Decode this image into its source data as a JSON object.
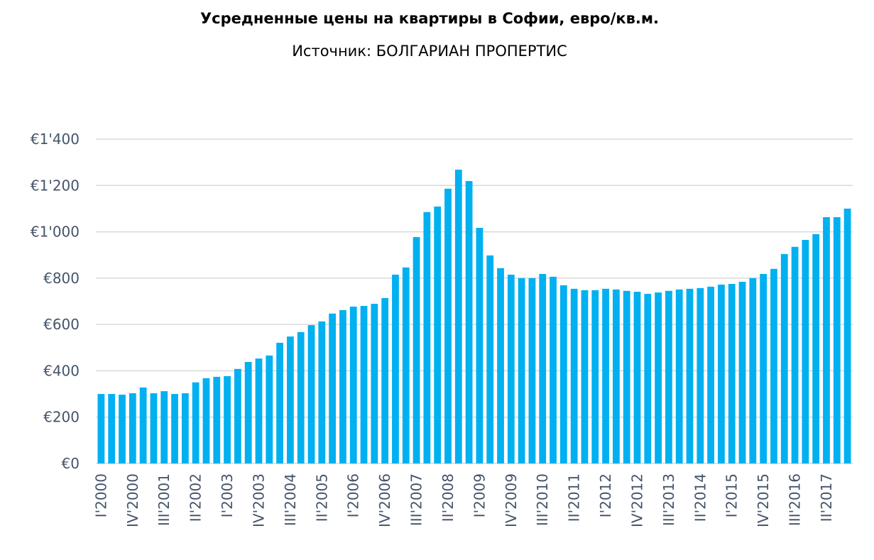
{
  "chart_data": {
    "type": "bar",
    "title": "Усредненные цены на квартиры в Софии, евро/кв.м.",
    "subtitle": "Источник: БОЛГАРИАН ПРОПЕРТИС",
    "xlabel": "",
    "ylabel": "",
    "ylim": [
      0,
      1400
    ],
    "yticks": [
      0,
      200,
      400,
      600,
      800,
      1000,
      1200,
      1400
    ],
    "ytick_labels": [
      "€0",
      "€200",
      "€400",
      "€600",
      "€800",
      "€1'000",
      "€1'200",
      "€1'400"
    ],
    "grid": "horizontal",
    "bar_color": "#00b0f0",
    "categories": [
      "I'2000",
      "II'2000",
      "III'2000",
      "IV'2000",
      "I'2001",
      "II'2001",
      "III'2001",
      "IV'2001",
      "I'2002",
      "II'2002",
      "III'2002",
      "IV'2002",
      "I'2003",
      "II'2003",
      "III'2003",
      "IV'2003",
      "I'2004",
      "II'2004",
      "III'2004",
      "IV'2004",
      "I'2005",
      "II'2005",
      "III'2005",
      "IV'2005",
      "I'2006",
      "II'2006",
      "III'2006",
      "IV'2006",
      "I'2007",
      "II'2007",
      "III'2007",
      "IV'2007",
      "I'2008",
      "II'2008",
      "III'2008",
      "IV'2008",
      "I'2009",
      "II'2009",
      "III'2009",
      "IV'2009",
      "I'2010",
      "II'2010",
      "III'2010",
      "IV'2010",
      "I'2011",
      "II'2011",
      "III'2011",
      "IV'2011",
      "I'2012",
      "II'2012",
      "III'2012",
      "IV'2012",
      "I'2013",
      "II'2013",
      "III'2013",
      "IV'2013",
      "I'2014",
      "II'2014",
      "III'2014",
      "IV'2014",
      "I'2015",
      "II'2015",
      "III'2015",
      "IV'2015",
      "I'2016",
      "II'2016",
      "III'2016",
      "IV'2016",
      "I'2017",
      "II'2017",
      "III'2017",
      "IV'2017"
    ],
    "xtick_labels_shown": [
      "I'2000",
      "IV'2000",
      "III'2001",
      "II'2002",
      "I'2003",
      "IV'2003",
      "III'2004",
      "II'2005",
      "I'2006",
      "IV'2006",
      "III'2007",
      "II'2008",
      "I'2009",
      "IV'2009",
      "III'2010",
      "II'2011",
      "I'2012",
      "IV'2012",
      "III'2013",
      "II'2014",
      "I'2015",
      "IV'2015",
      "III'2016",
      "II'2017"
    ],
    "values": [
      300,
      300,
      297,
      303,
      328,
      303,
      312,
      300,
      303,
      350,
      368,
      374,
      377,
      408,
      438,
      453,
      466,
      521,
      548,
      567,
      597,
      613,
      647,
      662,
      677,
      680,
      689,
      714,
      815,
      846,
      977,
      1085,
      1109,
      1186,
      1268,
      1219,
      1017,
      898,
      843,
      815,
      800,
      800,
      818,
      806,
      769,
      754,
      748,
      748,
      754,
      751,
      745,
      741,
      732,
      738,
      745,
      751,
      754,
      757,
      763,
      772,
      775,
      784,
      800,
      818,
      840,
      904,
      935,
      965,
      990,
      1063,
      1063,
      1100
    ]
  }
}
